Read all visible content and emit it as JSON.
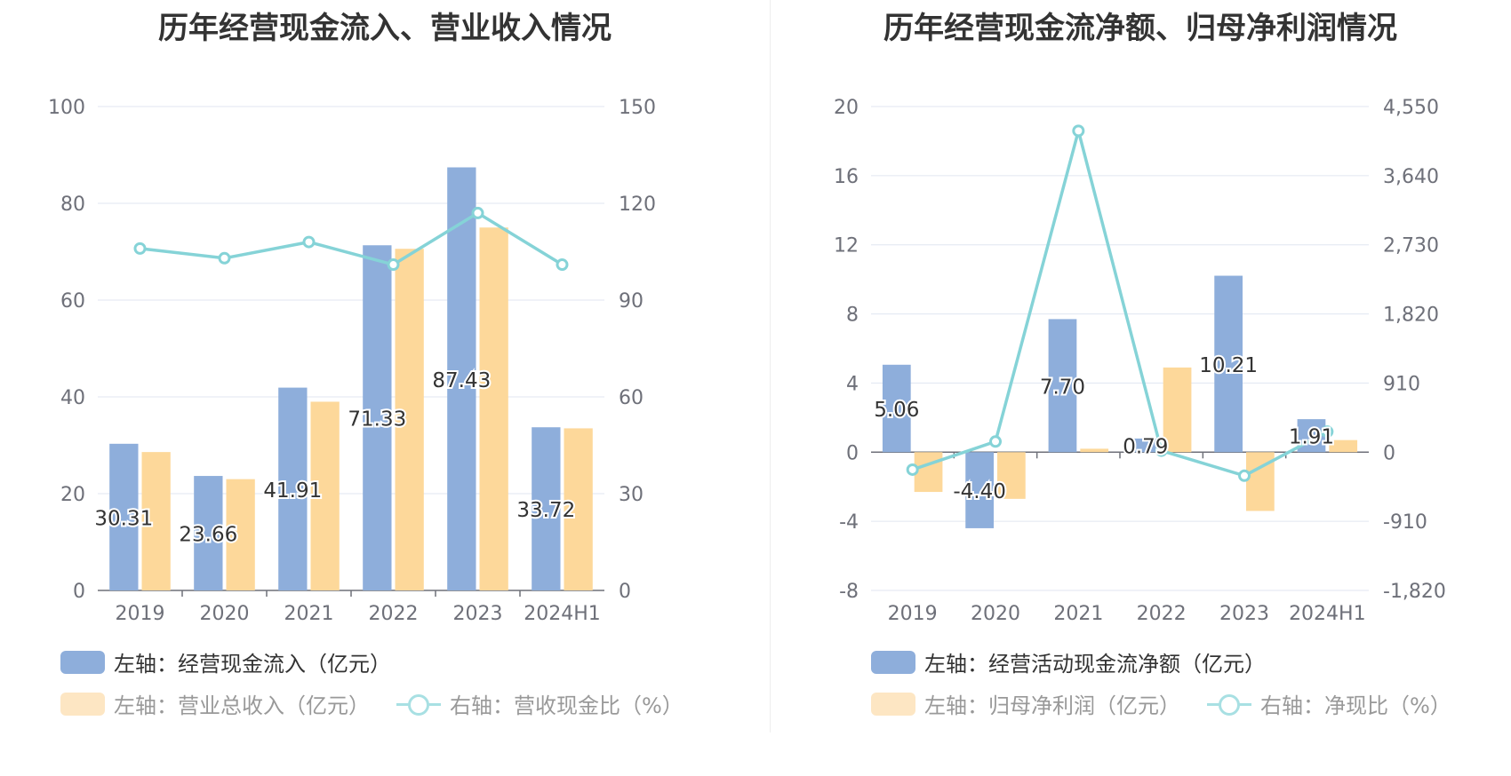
{
  "colors": {
    "inflow": "#8eaedb",
    "revenue": "#fdd89a",
    "ratio_line": "#85d3d7",
    "legend_line": "#a8e0e3",
    "legend_revenue": "#fde6c3"
  },
  "chart_data": [
    {
      "type": "bar",
      "title": "历年经营现金流入、营业收入情况",
      "categories": [
        "2019",
        "2020",
        "2021",
        "2022",
        "2023",
        "2024H1"
      ],
      "y_left": {
        "ticks": [
          "0",
          "20",
          "40",
          "60",
          "80",
          "100"
        ],
        "range": [
          0,
          100
        ]
      },
      "y_right": {
        "ticks": [
          "0",
          "30",
          "60",
          "90",
          "120",
          "150"
        ],
        "range": [
          0,
          150
        ]
      },
      "grid": true,
      "legend_position": "bottom",
      "series": [
        {
          "name": "左轴：经营现金流入（亿元）",
          "kind": "bar",
          "axis": "left",
          "values": [
            30.31,
            23.66,
            41.91,
            71.33,
            87.43,
            33.72
          ],
          "labels": [
            "30.31",
            "23.66",
            "41.91",
            "71.33",
            "87.43",
            "33.72"
          ]
        },
        {
          "name": "左轴：营业总收入（亿元）",
          "kind": "bar",
          "axis": "left",
          "values": [
            28.6,
            23.0,
            39.0,
            70.6,
            75.0,
            33.5
          ]
        },
        {
          "name": "右轴：营收现金比（%）",
          "kind": "line",
          "axis": "right",
          "values": [
            106,
            103,
            108,
            101,
            117,
            101
          ]
        }
      ]
    },
    {
      "type": "bar",
      "title": "历年经营现金流净额、归母净利润情况",
      "categories": [
        "2019",
        "2020",
        "2021",
        "2022",
        "2023",
        "2024H1"
      ],
      "y_left": {
        "ticks": [
          "-8",
          "-4",
          "0",
          "4",
          "8",
          "12",
          "16",
          "20"
        ],
        "range": [
          -8,
          20
        ]
      },
      "y_right": {
        "ticks": [
          "-1,820",
          "-910",
          "0",
          "910",
          "1,820",
          "2,730",
          "3,640",
          "4,550"
        ],
        "range": [
          -1820,
          4550
        ]
      },
      "grid": true,
      "legend_position": "bottom",
      "series": [
        {
          "name": "左轴：经营活动现金流净额（亿元）",
          "kind": "bar",
          "axis": "left",
          "values": [
            5.06,
            -4.4,
            7.7,
            0.79,
            10.21,
            1.91
          ],
          "labels": [
            "5.06",
            "-4.40",
            "7.70",
            "0.79",
            "10.21",
            "1.91"
          ]
        },
        {
          "name": "左轴：归母净利润（亿元）",
          "kind": "bar",
          "axis": "left",
          "values": [
            -2.3,
            -2.7,
            0.2,
            4.9,
            -3.4,
            0.7
          ]
        },
        {
          "name": "右轴：净现比（%）",
          "kind": "line",
          "axis": "right",
          "values": [
            -230,
            140,
            4230,
            20,
            -310,
            270
          ]
        }
      ]
    }
  ]
}
